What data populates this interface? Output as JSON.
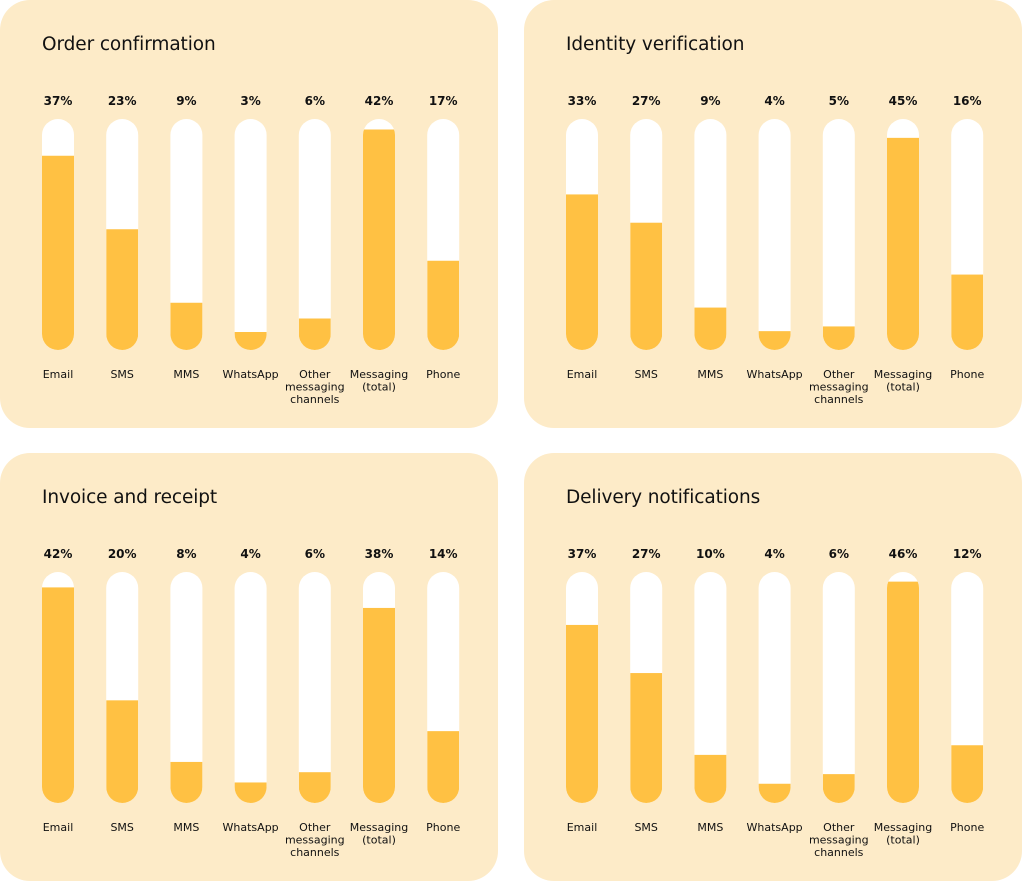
{
  "colors": {
    "panel_bg": "#fdebc8",
    "track": "#ffffff",
    "fill": "#ffc143",
    "text": "#111111"
  },
  "chart_data": [
    {
      "type": "bar",
      "title": "Order confirmation",
      "categories": [
        "Email",
        "SMS",
        "MMS",
        "WhatsApp",
        "Other messaging channels",
        "Messaging (total)",
        "Phone"
      ],
      "values": [
        37,
        23,
        9,
        3,
        6,
        42,
        17
      ],
      "value_labels": [
        "37%",
        "23%",
        "9%",
        "3%",
        "6%",
        "42%",
        "17%"
      ],
      "ylim": [
        0,
        44
      ]
    },
    {
      "type": "bar",
      "title": "Identity verification",
      "categories": [
        "Email",
        "SMS",
        "MMS",
        "WhatsApp",
        "Other messaging channels",
        "Messaging (total)",
        "Phone"
      ],
      "values": [
        33,
        27,
        9,
        4,
        5,
        45,
        16
      ],
      "value_labels": [
        "33%",
        "27%",
        "9%",
        "4%",
        "5%",
        "45%",
        "16%"
      ],
      "ylim": [
        0,
        49
      ]
    },
    {
      "type": "bar",
      "title": "Invoice and receipt",
      "categories": [
        "Email",
        "SMS",
        "MMS",
        "WhatsApp",
        "Other messaging channels",
        "Messaging (total)",
        "Phone"
      ],
      "values": [
        42,
        20,
        8,
        4,
        6,
        38,
        14
      ],
      "value_labels": [
        "42%",
        "20%",
        "8%",
        "4%",
        "6%",
        "38%",
        "14%"
      ],
      "ylim": [
        0,
        45
      ]
    },
    {
      "type": "bar",
      "title": "Delivery notifications",
      "categories": [
        "Email",
        "SMS",
        "MMS",
        "WhatsApp",
        "Other messaging channels",
        "Messaging (total)",
        "Phone"
      ],
      "values": [
        37,
        27,
        10,
        4,
        6,
        46,
        12
      ],
      "value_labels": [
        "37%",
        "27%",
        "10%",
        "4%",
        "6%",
        "46%",
        "12%"
      ],
      "ylim": [
        0,
        48
      ]
    }
  ]
}
